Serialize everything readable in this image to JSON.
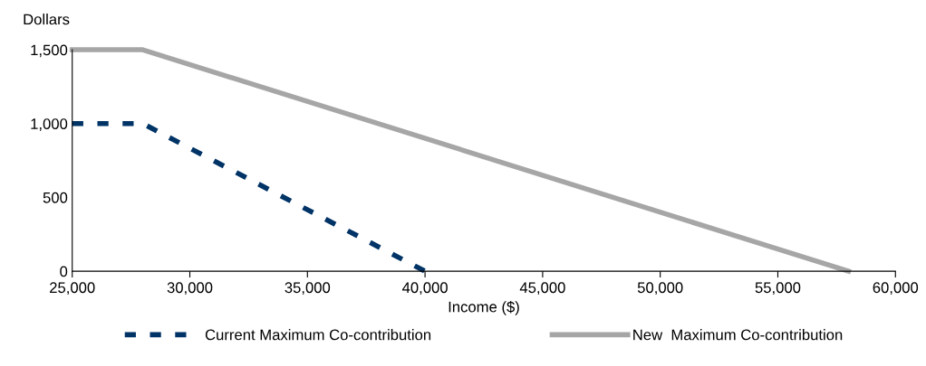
{
  "chart_data": {
    "type": "line",
    "xlabel": "Income ($)",
    "ylabel": "Dollars",
    "series": [
      {
        "name": "Current Maximum Co-contribution",
        "color": "#003366",
        "line_style": "dashed",
        "x": [
          25000,
          28000,
          40000
        ],
        "values": [
          1000,
          1000,
          0
        ]
      },
      {
        "name": "New  Maximum Co-contribution",
        "color": "#a6a6a6",
        "line_style": "solid",
        "x": [
          25000,
          28000,
          58000
        ],
        "values": [
          1500,
          1500,
          0
        ]
      }
    ],
    "xlim": [
      25000,
      60000
    ],
    "ylim": [
      0,
      1500
    ],
    "xticks": [
      {
        "value": 25000,
        "label": "25,000"
      },
      {
        "value": 30000,
        "label": "30,000"
      },
      {
        "value": 35000,
        "label": "35,000"
      },
      {
        "value": 40000,
        "label": "40,000"
      },
      {
        "value": 45000,
        "label": "45,000"
      },
      {
        "value": 50000,
        "label": "50,000"
      },
      {
        "value": 55000,
        "label": "55,000"
      },
      {
        "value": 60000,
        "label": "60,000"
      }
    ],
    "yticks": [
      0,
      {
        "value": 500,
        "label": "500"
      },
      {
        "value": 1000,
        "label": "1,000"
      },
      {
        "value": 1500,
        "label": "1,500"
      }
    ],
    "grid": false,
    "legend": "bottom",
    "marker": "none"
  }
}
